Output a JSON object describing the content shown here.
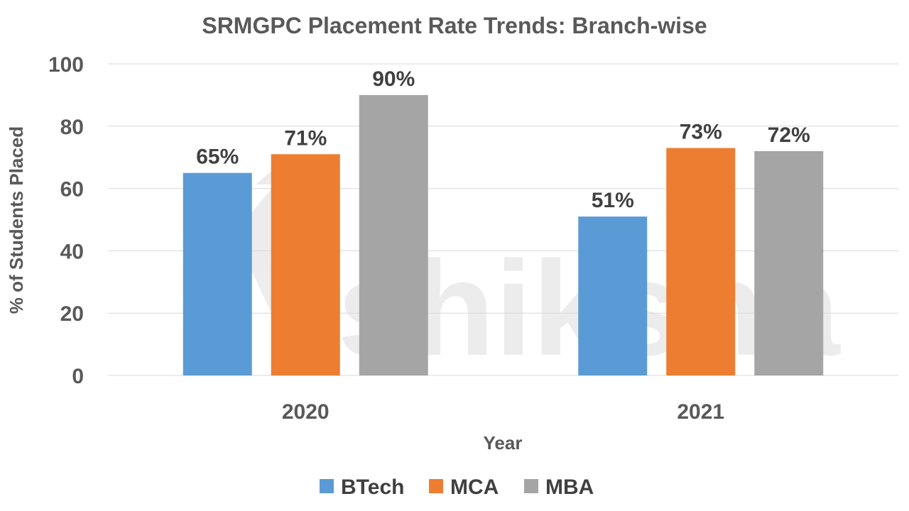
{
  "chart_data": {
    "type": "bar",
    "title": "SRMGPC Placement Rate Trends: Branch-wise",
    "xlabel": "Year",
    "ylabel": "% of Students Placed",
    "categories": [
      "2020",
      "2021"
    ],
    "series": [
      {
        "name": "BTech",
        "values": [
          65,
          51
        ],
        "labels": [
          "65%",
          "51%"
        ],
        "color": "#5b9bd5"
      },
      {
        "name": "MCA",
        "values": [
          71,
          73
        ],
        "labels": [
          "71%",
          "73%"
        ],
        "color": "#ed7d31"
      },
      {
        "name": "MBA",
        "values": [
          90,
          72
        ],
        "labels": [
          "90%",
          "72%"
        ],
        "color": "#a5a5a5"
      }
    ],
    "ylim": [
      0,
      100
    ],
    "yticks": [
      "0",
      "20",
      "40",
      "60",
      "80",
      "100"
    ],
    "grid": true,
    "legend_position": "bottom"
  },
  "watermark": {
    "text": "shiksha"
  }
}
